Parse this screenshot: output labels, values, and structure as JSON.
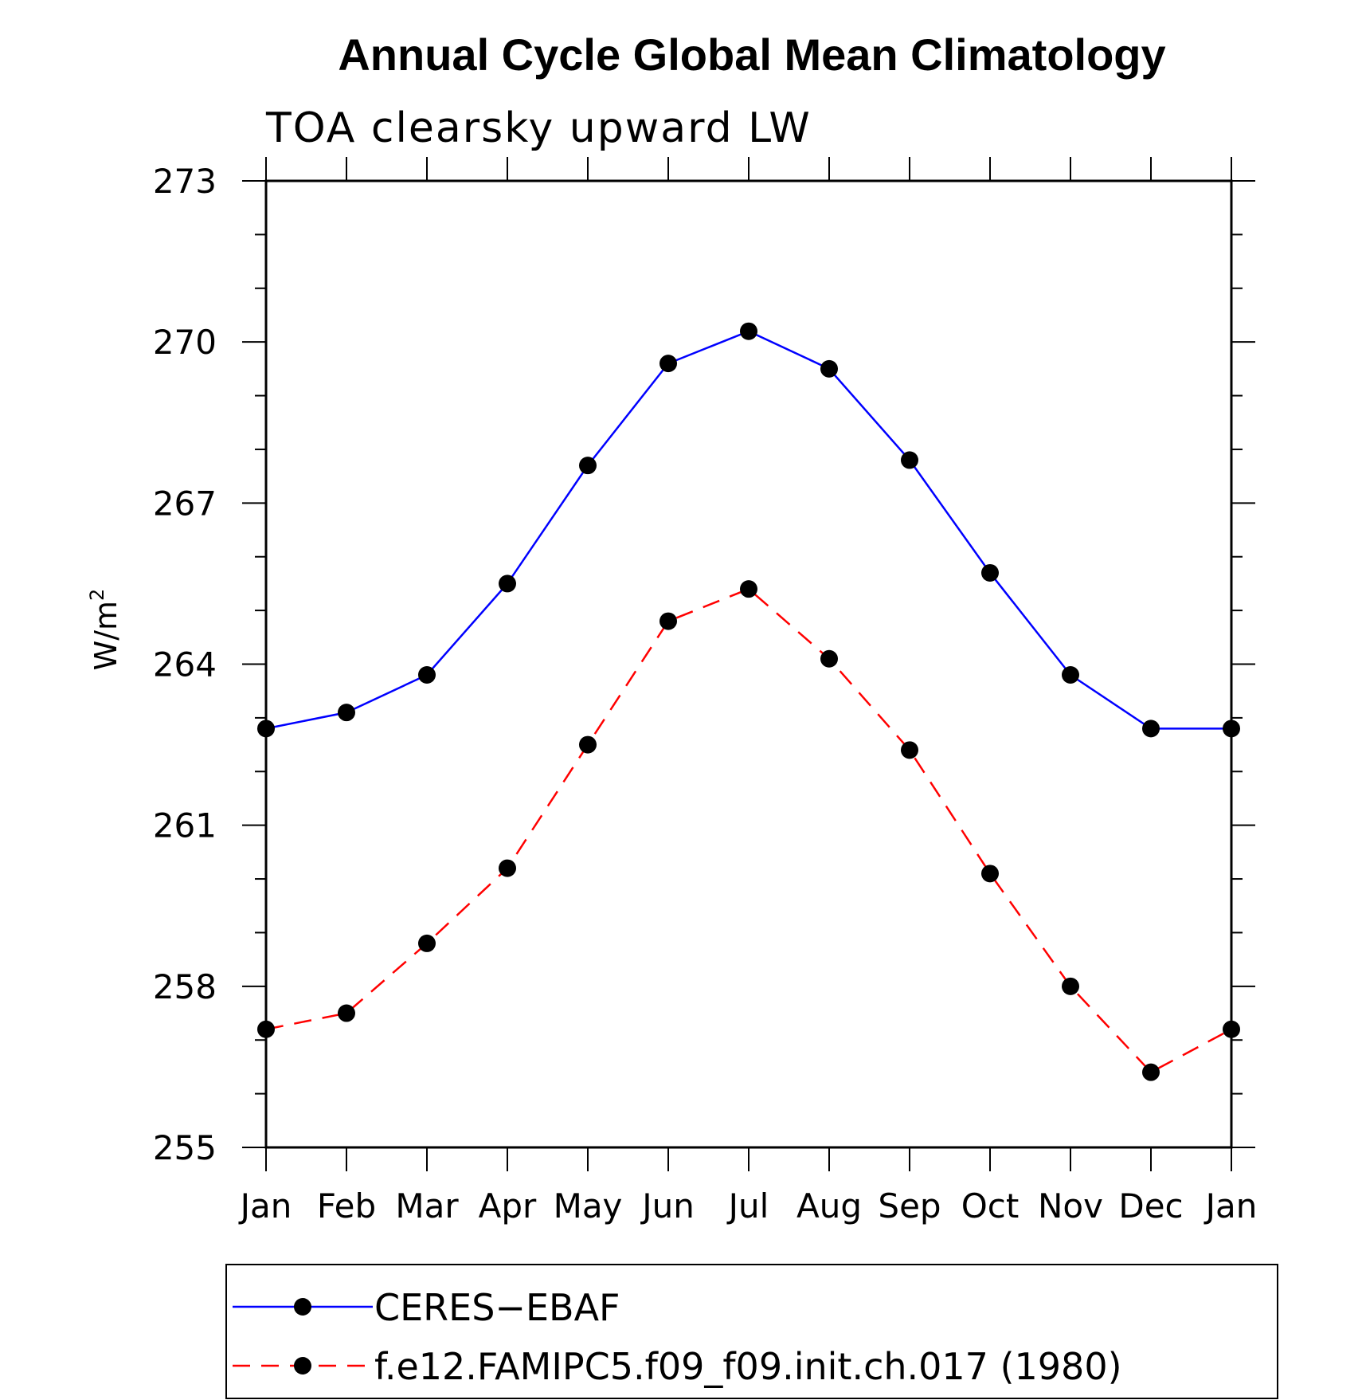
{
  "chart_data": {
    "type": "line",
    "title": "Annual Cycle Global Mean Climatology",
    "subtitle": "TOA clearsky upward LW",
    "ylabel": "W/m",
    "ylabel_superscript": "2",
    "xlabel": "",
    "categories": [
      "Jan",
      "Feb",
      "Mar",
      "Apr",
      "May",
      "Jun",
      "Jul",
      "Aug",
      "Sep",
      "Oct",
      "Nov",
      "Dec",
      "Jan"
    ],
    "ylim": [
      255,
      273
    ],
    "yticks": [
      "255",
      "258",
      "261",
      "264",
      "267",
      "270",
      "273"
    ],
    "series": [
      {
        "name": "CERES−EBAF",
        "color": "#0000ff",
        "dash": "solid",
        "marker": "filled-circle",
        "values": [
          262.8,
          263.1,
          263.8,
          265.5,
          267.7,
          269.6,
          270.2,
          269.5,
          267.8,
          265.7,
          263.8,
          262.8,
          262.8
        ]
      },
      {
        "name": "f.e12.FAMIPC5.f09_f09.init.ch.017 (1980)",
        "color": "#ff0000",
        "dash": "dashed",
        "marker": "filled-circle",
        "values": [
          257.2,
          257.5,
          258.8,
          260.2,
          262.5,
          264.8,
          265.4,
          264.1,
          262.4,
          260.1,
          258.0,
          256.4,
          257.2
        ]
      }
    ],
    "legend_position": "bottom",
    "grid": false
  }
}
